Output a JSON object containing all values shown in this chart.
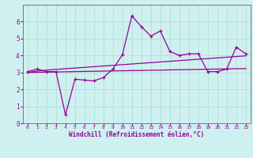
{
  "xlabel": "Windchill (Refroidissement éolien,°C)",
  "bg_color": "#cff0f0",
  "grid_color": "#aaddcc",
  "line_color": "#990099",
  "spine_color": "#777777",
  "x_values": [
    0,
    1,
    2,
    3,
    4,
    5,
    6,
    7,
    8,
    9,
    10,
    11,
    12,
    13,
    14,
    15,
    16,
    17,
    18,
    19,
    20,
    21,
    22,
    23
  ],
  "y_main": [
    3.05,
    3.2,
    3.05,
    3.05,
    0.5,
    2.6,
    2.55,
    2.5,
    2.7,
    3.2,
    4.05,
    6.35,
    5.7,
    5.15,
    5.45,
    4.25,
    4.0,
    4.1,
    4.1,
    3.05,
    3.05,
    3.2,
    4.5,
    4.1
  ],
  "y_trend1": [
    3.0,
    3.08,
    3.14,
    3.18,
    3.22,
    3.26,
    3.3,
    3.34,
    3.38,
    3.42,
    3.46,
    3.5,
    3.54,
    3.58,
    3.62,
    3.66,
    3.7,
    3.74,
    3.78,
    3.82,
    3.86,
    3.9,
    3.94,
    3.98
  ],
  "y_trend2": [
    3.0,
    3.01,
    3.02,
    3.03,
    3.04,
    3.05,
    3.06,
    3.07,
    3.08,
    3.09,
    3.1,
    3.11,
    3.12,
    3.13,
    3.14,
    3.15,
    3.16,
    3.17,
    3.18,
    3.19,
    3.2,
    3.21,
    3.22,
    3.23
  ],
  "ylim": [
    0,
    7
  ],
  "xlim": [
    -0.5,
    23.5
  ],
  "yticks": [
    0,
    1,
    2,
    3,
    4,
    5,
    6
  ],
  "xticks": [
    0,
    1,
    2,
    3,
    4,
    5,
    6,
    7,
    8,
    9,
    10,
    11,
    12,
    13,
    14,
    15,
    16,
    17,
    18,
    19,
    20,
    21,
    22,
    23
  ]
}
